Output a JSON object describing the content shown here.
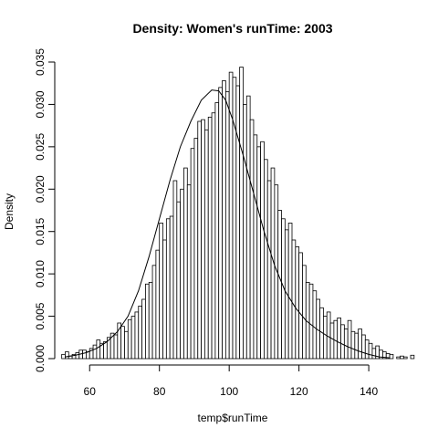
{
  "chart_data": {
    "type": "bar",
    "title": "Density: Women's runTime:  2003",
    "xlabel": "temp$runTime",
    "ylabel": "Density",
    "xlim": [
      50,
      152
    ],
    "ylim": [
      0,
      0.035
    ],
    "xticks": [
      60,
      80,
      100,
      120,
      140
    ],
    "yticks": [
      0,
      0.005,
      0.01,
      0.015,
      0.02,
      0.025,
      0.03,
      0.035
    ],
    "ytick_labels": [
      "0.000",
      "0.005",
      "0.010",
      "0.015",
      "0.020",
      "0.025",
      "0.030",
      "0.035"
    ],
    "grid": false,
    "bins": {
      "start": 52,
      "width": 1,
      "values": [
        0.0005,
        0.0008,
        0.0003,
        0.0005,
        0.0007,
        0.001,
        0.001,
        0.0008,
        0.0012,
        0.0016,
        0.0022,
        0.0018,
        0.002,
        0.0025,
        0.003,
        0.0028,
        0.0042,
        0.0038,
        0.0032,
        0.0046,
        0.005,
        0.0055,
        0.0062,
        0.007,
        0.0088,
        0.009,
        0.011,
        0.0128,
        0.016,
        0.014,
        0.0165,
        0.0168,
        0.021,
        0.0185,
        0.02,
        0.0225,
        0.0205,
        0.0248,
        0.026,
        0.028,
        0.0282,
        0.027,
        0.0285,
        0.029,
        0.0302,
        0.032,
        0.0328,
        0.0315,
        0.0338,
        0.0332,
        0.0322,
        0.0344,
        0.03,
        0.031,
        0.0282,
        0.0264,
        0.025,
        0.0256,
        0.0235,
        0.021,
        0.0225,
        0.0205,
        0.0175,
        0.0165,
        0.0152,
        0.016,
        0.014,
        0.0132,
        0.0125,
        0.011,
        0.009,
        0.0088,
        0.008,
        0.007,
        0.006,
        0.005,
        0.0055,
        0.0042,
        0.0045,
        0.0048,
        0.004,
        0.0035,
        0.0045,
        0.0032,
        0.003,
        0.0035,
        0.0028,
        0.0022,
        0.0018,
        0.0012,
        0.0015,
        0.001,
        0.0008,
        0.0006,
        0.0005,
        0,
        0.0002,
        0.0003,
        0.0002,
        0,
        0.0004
      ]
    },
    "density_curve": {
      "type": "line",
      "x": [
        53,
        56,
        59,
        62,
        65,
        68,
        71,
        74,
        77,
        80,
        83,
        86,
        89,
        92,
        95,
        97,
        99,
        101,
        104,
        107,
        110,
        113,
        116,
        119,
        122,
        125,
        128,
        131,
        134,
        137,
        140,
        143,
        146
      ],
      "y": [
        0.0002,
        0.0004,
        0.0007,
        0.0012,
        0.002,
        0.0032,
        0.005,
        0.008,
        0.012,
        0.0165,
        0.021,
        0.025,
        0.028,
        0.0305,
        0.0317,
        0.0316,
        0.0305,
        0.0282,
        0.024,
        0.0195,
        0.015,
        0.011,
        0.008,
        0.006,
        0.0045,
        0.0035,
        0.0027,
        0.002,
        0.0014,
        0.0009,
        0.0005,
        0.0002,
        0.0001
      ]
    }
  }
}
